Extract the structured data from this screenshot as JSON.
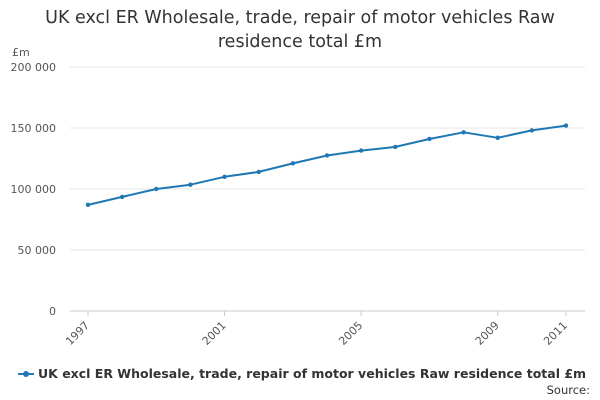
{
  "chart_data": {
    "type": "line",
    "title_line1": "UK excl ER Wholesale, trade, repair of motor vehicles Raw",
    "title_line2": "residence total £m",
    "ylabel": "£m",
    "ylim": [
      0,
      200000
    ],
    "yticks": [
      0,
      50000,
      100000,
      150000,
      200000
    ],
    "ytick_labels": [
      "0",
      "50 000",
      "100 000",
      "150 000",
      "200 000"
    ],
    "xlim": [
      1997,
      2011
    ],
    "xticks": [
      1997,
      2001,
      2005,
      2009,
      2011
    ],
    "xtick_labels": [
      "1997",
      "2001",
      "2005",
      "2009",
      "2011"
    ],
    "grid": true,
    "legend_position": "bottom-left",
    "series": [
      {
        "name": "UK excl ER Wholesale, trade, repair of motor vehicles Raw residence total £m",
        "color": "#1f77b4",
        "x": [
          1997,
          1998,
          1999,
          2000,
          2001,
          2002,
          2003,
          2004,
          2005,
          2006,
          2007,
          2008,
          2009,
          2010,
          2011
        ],
        "y": [
          87000,
          93500,
          100000,
          103500,
          110000,
          114000,
          121000,
          127500,
          131500,
          134500,
          141000,
          146500,
          142000,
          148000,
          152000
        ]
      }
    ]
  },
  "source_label": "Source:"
}
